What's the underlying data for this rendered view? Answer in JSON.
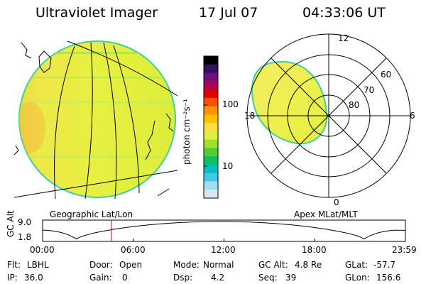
{
  "header": {
    "instrument": "Ultraviolet Imager",
    "date": "17 Jul 07",
    "time": "04:33:06 UT"
  },
  "colorbar": {
    "label": "photon cm⁻²s⁻¹",
    "ticks": [
      "100",
      "10"
    ],
    "colors": [
      "#000000",
      "#301060",
      "#701080",
      "#b00050",
      "#e00000",
      "#ff5000",
      "#ff9000",
      "#ffc000",
      "#ffe040",
      "#e0f040",
      "#a0e030",
      "#50d030",
      "#10c060",
      "#00c0c0",
      "#40c8e8",
      "#a0e0f0",
      "#d8e8f0"
    ]
  },
  "geo_panel": {
    "title": "Geographic Lat/Lon",
    "fill_color": "#e8f040"
  },
  "polar_panel": {
    "title": "Apex MLat/MLT",
    "mlt_labels": {
      "top": "12",
      "bottom": "0",
      "left": "18",
      "right": "6"
    },
    "lat_labels": [
      "60",
      "70",
      "80"
    ]
  },
  "altitude_plot": {
    "ylabel": "GC Alt",
    "ymax": "9.0",
    "ymin": "1.8",
    "xticks": [
      "00:00",
      "06:00",
      "12:00",
      "18:00",
      "23:59"
    ],
    "marker_hour": 4.55,
    "marker_color": "#c00000"
  },
  "info": {
    "filter": {
      "label": "Flt:",
      "value": "LBHL"
    },
    "ip": {
      "label": "IP:",
      "value": "36.0"
    },
    "door": {
      "label": "Door:",
      "value": "Open"
    },
    "gain": {
      "label": "Gain:",
      "value": "0"
    },
    "mode": {
      "label": "Mode:",
      "value": "Normal"
    },
    "dsp": {
      "label": "Dsp:",
      "value": "4.2"
    },
    "gc_alt": {
      "label": "GC Alt:",
      "value": "4.8 Re"
    },
    "seq": {
      "label": "Seq:",
      "value": "39"
    },
    "glat": {
      "label": "GLat:",
      "value": "-57.7"
    },
    "glon": {
      "label": "GLon:",
      "value": "156.6"
    }
  }
}
